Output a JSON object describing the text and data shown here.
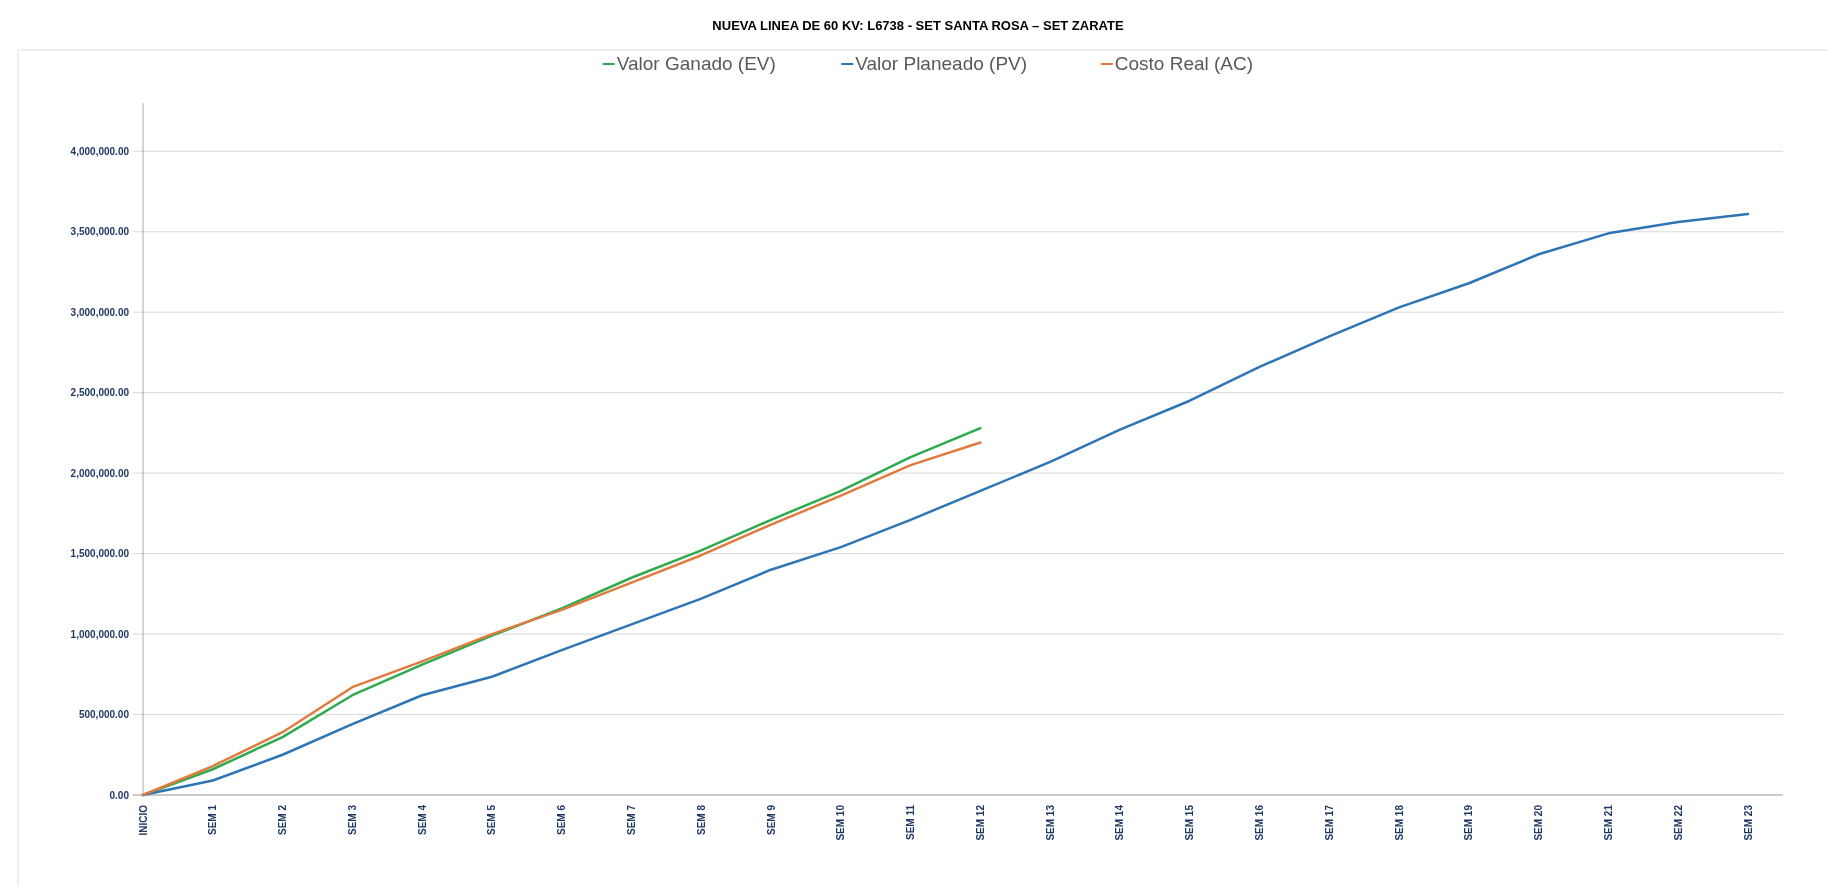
{
  "chart_data": {
    "type": "line",
    "title": "NUEVA LINEA DE 60 KV: L6738 - SET SANTA ROSA – SET ZARATE",
    "categories": [
      "INICIO",
      "SEM 1",
      "SEM 2",
      "SEM 3",
      "SEM 4",
      "SEM 5",
      "SEM 6",
      "SEM 7",
      "SEM 8",
      "SEM 9",
      "SEM 10",
      "SEM 11",
      "SEM 12",
      "SEM 13",
      "SEM 14",
      "SEM 15",
      "SEM 16",
      "SEM 17",
      "SEM 18",
      "SEM 19",
      "SEM 20",
      "SEM 21",
      "SEM 22",
      "SEM 23"
    ],
    "series": [
      {
        "name": "Valor Ganado (EV)",
        "color": "#2eaa4f",
        "values": [
          0,
          160000,
          360000,
          620000,
          810000,
          990000,
          1160000,
          1350000,
          1520000,
          1710000,
          1890000,
          2100000,
          2280000,
          null,
          null,
          null,
          null,
          null,
          null,
          null,
          null,
          null,
          null,
          null
        ]
      },
      {
        "name": "Valor Planeado (PV)",
        "color": "#2e75b6",
        "values": [
          0,
          90000,
          250000,
          440000,
          620000,
          735000,
          900000,
          1060000,
          1220000,
          1400000,
          1540000,
          1710000,
          1890000,
          2070000,
          2270000,
          2450000,
          2660000,
          2850000,
          3030000,
          3180000,
          3360000,
          3490000,
          3560000,
          3610000
        ]
      },
      {
        "name": "Costo Real (AC)",
        "color": "#e07b3f",
        "values": [
          0,
          180000,
          390000,
          670000,
          830000,
          1000000,
          1150000,
          1320000,
          1490000,
          1680000,
          1860000,
          2050000,
          2190000,
          null,
          null,
          null,
          null,
          null,
          null,
          null,
          null,
          null,
          null,
          null
        ]
      }
    ],
    "ylim": [
      0,
      4300000
    ],
    "yticks": [
      {
        "value": 0,
        "label": "0.00"
      },
      {
        "value": 500000,
        "label": "500,000.00"
      },
      {
        "value": 1000000,
        "label": "1,000,000.00"
      },
      {
        "value": 1500000,
        "label": "1,500,000.00"
      },
      {
        "value": 2000000,
        "label": "2,000,000.00"
      },
      {
        "value": 2500000,
        "label": "2,500,000.00"
      },
      {
        "value": 3000000,
        "label": "3,000,000.00"
      },
      {
        "value": 3500000,
        "label": "3,500,000.00"
      },
      {
        "value": 4000000,
        "label": "4,000,000.00"
      }
    ],
    "grid": "y",
    "legend": "top",
    "marker": "none",
    "line_style": "solid"
  }
}
